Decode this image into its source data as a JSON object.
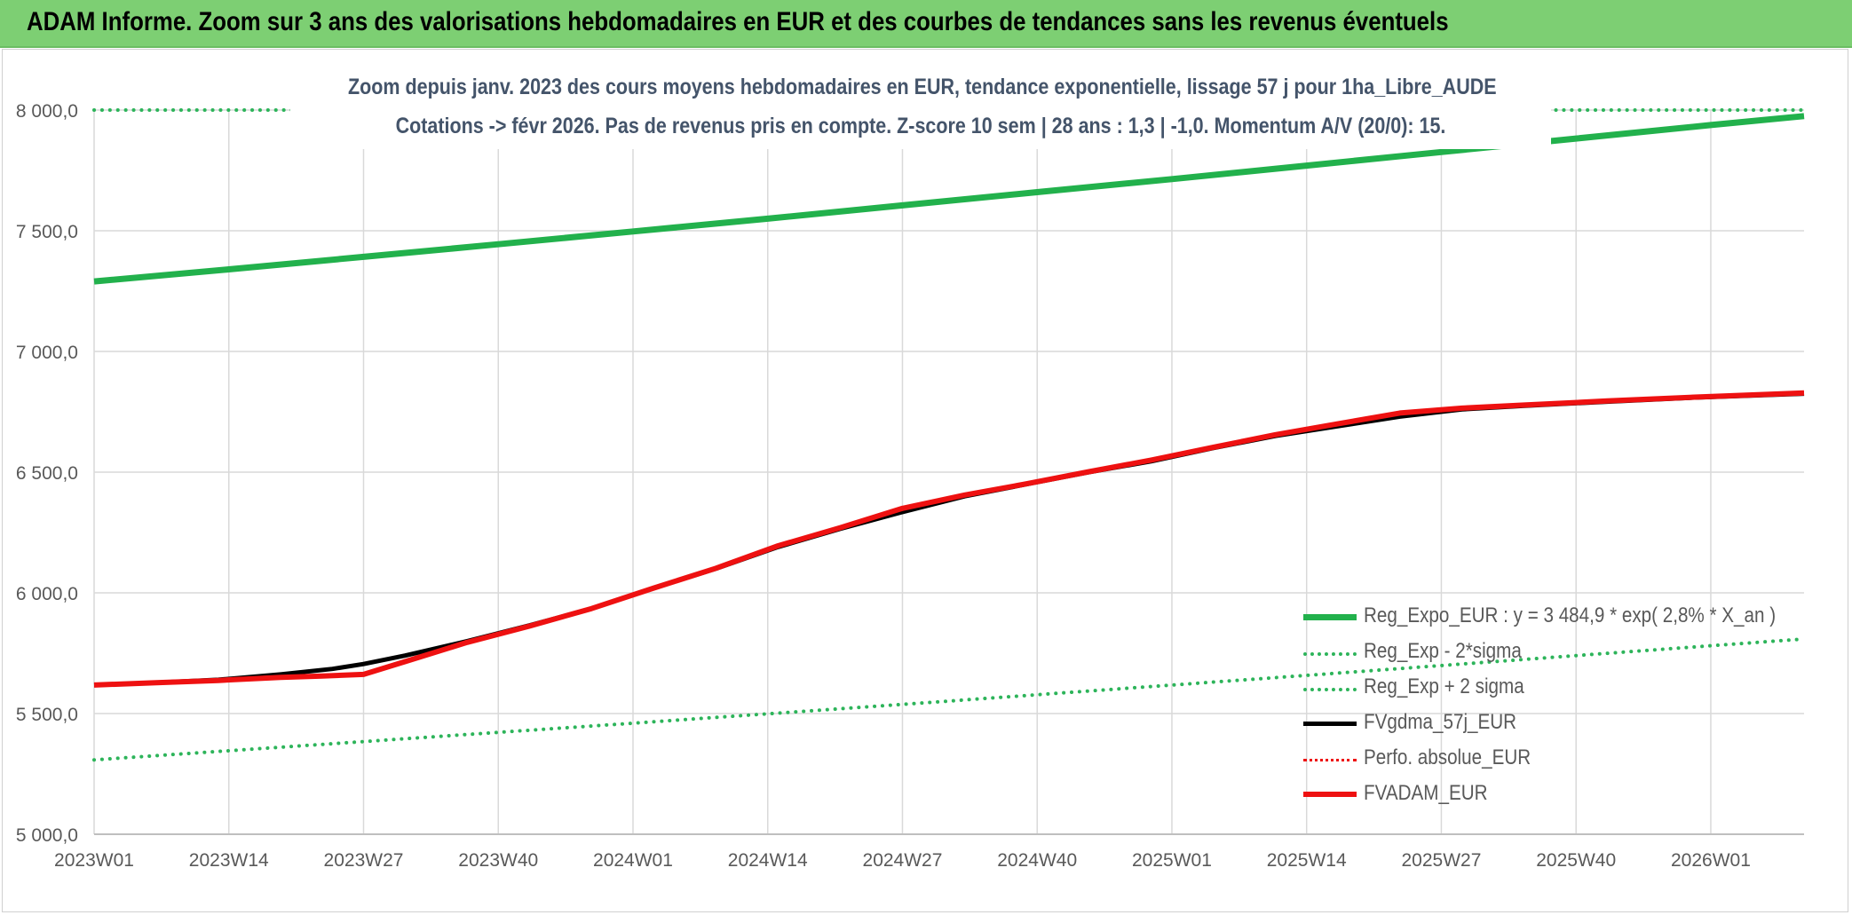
{
  "banner": {
    "title": "ADAM Informe. Zoom sur 3 ans des valorisations hebdomadaires en EUR et des courbes de tendances sans les revenus éventuels"
  },
  "colors": {
    "banner_bg": "#7dcf73",
    "green_trend": "#22b14c",
    "green_band": "#2db45a",
    "black": "#000000",
    "red": "#ee1111",
    "grid": "#d9d9d9",
    "axis_text": "#595959",
    "subtitle_text": "#44546a"
  },
  "chart_data": {
    "type": "line",
    "title": "Zoom depuis janv. 2023 des cours moyens hebdomadaires en EUR, tendance exponentielle, lissage 57 j pour 1ha_Libre_AUDE",
    "subtitle": "Cotations -> févr 2026. Pas de revenus pris en compte. Z-score 10 sem | 28 ans : 1,3 | -1,0. Momentum A/V (20/0): 15.",
    "x_tick_labels": [
      "2023W01",
      "2023W14",
      "2023W27",
      "2023W40",
      "2024W01",
      "2024W14",
      "2024W27",
      "2024W40",
      "2025W01",
      "2025W14",
      "2025W27",
      "2025W40",
      "2026W01"
    ],
    "x_range_weeks": [
      0,
      165
    ],
    "y_tick_labels": [
      "5 000,0",
      "5 500,0",
      "6 000,0",
      "6 500,0",
      "7 000,0",
      "7 500,0",
      "8 000,0"
    ],
    "ylim": [
      5000,
      8000
    ],
    "grid": true,
    "legend_position": "bottom-right",
    "series": [
      {
        "name": "Reg_Expo_EUR : y = 3 484,9 * exp( 2,8% *  X_an )",
        "color": "#22b14c",
        "style": "solid",
        "width": 7,
        "points": [
          [
            0,
            7290
          ],
          [
            13,
            7340
          ],
          [
            26,
            7392
          ],
          [
            39,
            7444
          ],
          [
            52,
            7497
          ],
          [
            65,
            7550
          ],
          [
            78,
            7605
          ],
          [
            91,
            7660
          ],
          [
            104,
            7714
          ],
          [
            117,
            7770
          ],
          [
            130,
            7826
          ],
          [
            143,
            7882
          ],
          [
            156,
            7938
          ],
          [
            165,
            7975
          ]
        ]
      },
      {
        "name": "Reg_Exp - 2*sigma",
        "color": "#2db45a",
        "style": "dotted",
        "width": 4,
        "points": [
          [
            0,
            5308
          ],
          [
            13,
            5346
          ],
          [
            26,
            5384
          ],
          [
            39,
            5422
          ],
          [
            52,
            5460
          ],
          [
            65,
            5499
          ],
          [
            78,
            5538
          ],
          [
            91,
            5578
          ],
          [
            104,
            5618
          ],
          [
            117,
            5658
          ],
          [
            130,
            5699
          ],
          [
            143,
            5740
          ],
          [
            156,
            5781
          ],
          [
            165,
            5809
          ]
        ]
      },
      {
        "name": "Reg_Exp + 2 sigma",
        "color": "#2db45a",
        "style": "dotted",
        "width": 4,
        "points": [
          [
            0,
            8000
          ],
          [
            165,
            8000
          ]
        ]
      },
      {
        "name": "FVgdma_57j_EUR",
        "color": "#000000",
        "style": "solid",
        "width": 5,
        "points": [
          [
            0,
            5618
          ],
          [
            6,
            5628
          ],
          [
            12,
            5640
          ],
          [
            18,
            5662
          ],
          [
            23,
            5685
          ],
          [
            26,
            5705
          ],
          [
            30,
            5740
          ],
          [
            36,
            5800
          ],
          [
            42,
            5865
          ],
          [
            48,
            5935
          ],
          [
            54,
            6020
          ],
          [
            60,
            6100
          ],
          [
            66,
            6190
          ],
          [
            72,
            6265
          ],
          [
            78,
            6335
          ],
          [
            84,
            6400
          ],
          [
            90,
            6450
          ],
          [
            96,
            6500
          ],
          [
            102,
            6545
          ],
          [
            108,
            6600
          ],
          [
            114,
            6650
          ],
          [
            120,
            6690
          ],
          [
            126,
            6730
          ],
          [
            132,
            6760
          ],
          [
            138,
            6775
          ],
          [
            146,
            6792
          ],
          [
            154,
            6808
          ],
          [
            165,
            6825
          ]
        ]
      },
      {
        "name": "Perfo. absolue_EUR",
        "color": "#ee1111",
        "style": "dotted",
        "width": 3,
        "points": []
      },
      {
        "name": "FVADAM_EUR",
        "color": "#ee1111",
        "style": "solid",
        "width": 6,
        "points": [
          [
            0,
            5618
          ],
          [
            6,
            5628
          ],
          [
            12,
            5637
          ],
          [
            18,
            5650
          ],
          [
            22,
            5655
          ],
          [
            26,
            5662
          ],
          [
            30,
            5715
          ],
          [
            36,
            5795
          ],
          [
            42,
            5862
          ],
          [
            48,
            5935
          ],
          [
            54,
            6020
          ],
          [
            60,
            6102
          ],
          [
            66,
            6195
          ],
          [
            72,
            6270
          ],
          [
            78,
            6350
          ],
          [
            84,
            6405
          ],
          [
            90,
            6452
          ],
          [
            96,
            6502
          ],
          [
            102,
            6550
          ],
          [
            108,
            6603
          ],
          [
            114,
            6655
          ],
          [
            120,
            6700
          ],
          [
            126,
            6745
          ],
          [
            132,
            6765
          ],
          [
            138,
            6778
          ],
          [
            146,
            6795
          ],
          [
            154,
            6810
          ],
          [
            165,
            6828
          ]
        ]
      }
    ]
  }
}
